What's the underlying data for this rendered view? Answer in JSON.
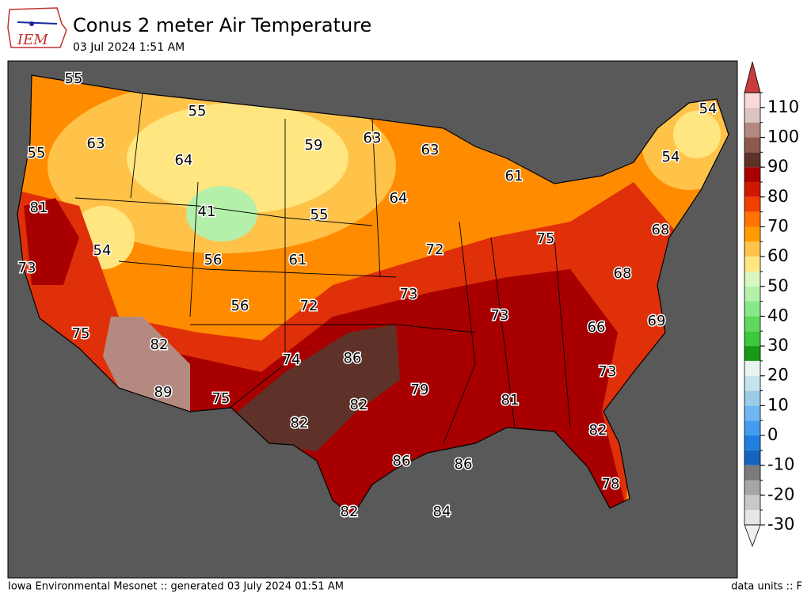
{
  "header": {
    "logo_text": "IEM",
    "title": "Conus 2 meter Air Temperature",
    "subtitle": "03 Jul 2024 1:51 AM"
  },
  "map": {
    "stations": [
      55,
      55,
      63,
      55,
      64,
      59,
      63,
      63,
      54,
      54,
      61,
      81,
      41,
      55,
      64,
      54,
      72,
      75,
      68,
      73,
      56,
      61,
      68,
      56,
      72,
      73,
      73,
      69,
      66,
      75,
      82,
      74,
      86,
      73,
      89,
      75,
      82,
      79,
      81,
      82,
      82,
      86,
      86,
      78,
      82,
      84
    ]
  },
  "colorbar": {
    "levels": [
      -30,
      -25,
      -20,
      -15,
      -10,
      -5,
      0,
      5,
      10,
      15,
      20,
      25,
      30,
      35,
      40,
      45,
      50,
      55,
      60,
      65,
      70,
      75,
      80,
      85,
      90,
      95,
      100,
      105,
      110,
      115
    ],
    "colors": [
      "#e6e6e6",
      "#c8c8c8",
      "#a6a6a6",
      "#7a7a7a",
      "#1565c0",
      "#1e7fe0",
      "#449cf0",
      "#70b6f0",
      "#9ccbe8",
      "#c6e4ee",
      "#e8f4f2",
      "#179a17",
      "#3cc83c",
      "#5ed85e",
      "#86e886",
      "#b4f0aa",
      "#d8f8c0",
      "#ffe680",
      "#ffc34a",
      "#ff9c00",
      "#ff7400",
      "#f04000",
      "#d01800",
      "#a80000",
      "#5e3228",
      "#8c5a4c",
      "#b48a80",
      "#dcc4c0",
      "#f8d8d8",
      "#f0a0a0"
    ],
    "top_color": "#c83c3c",
    "bottom_color": "#f0f0f0",
    "ticks": [
      -30,
      -20,
      -10,
      0,
      10,
      20,
      30,
      40,
      50,
      60,
      70,
      80,
      90,
      100,
      110
    ]
  },
  "footer": {
    "left": "Iowa Environmental Mesonet :: generated 03 July 2024 01:51 AM",
    "right": "data units :: F"
  }
}
